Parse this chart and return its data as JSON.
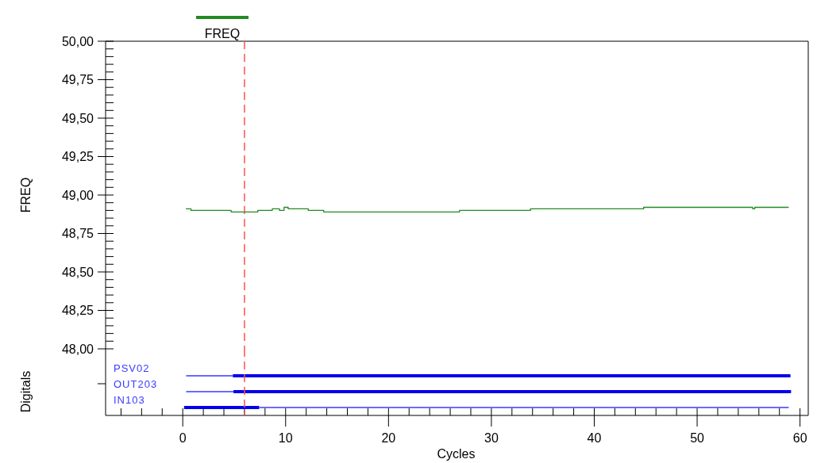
{
  "chart_data": [
    {
      "type": "line",
      "ylabel": "FREQ",
      "legend": "top",
      "tick_labels": "y",
      "xlim": [
        -7.5,
        60.8
      ],
      "ylim": [
        48,
        50
      ],
      "yticks": [
        {
          "value": 48,
          "label": "48,00"
        },
        {
          "value": 48.05,
          "label": null
        },
        {
          "value": 48.1,
          "label": null
        },
        {
          "value": 48.15,
          "label": null
        },
        {
          "value": 48.2,
          "label": null
        },
        {
          "value": 48.25,
          "label": "48,25"
        },
        {
          "value": 48.3,
          "label": null
        },
        {
          "value": 48.35,
          "label": null
        },
        {
          "value": 48.4,
          "label": null
        },
        {
          "value": 48.45,
          "label": null
        },
        {
          "value": 48.5,
          "label": "48,50"
        },
        {
          "value": 48.55,
          "label": null
        },
        {
          "value": 48.6,
          "label": null
        },
        {
          "value": 48.65,
          "label": null
        },
        {
          "value": 48.7,
          "label": null
        },
        {
          "value": 48.75,
          "label": "48,75"
        },
        {
          "value": 48.8,
          "label": null
        },
        {
          "value": 48.85,
          "label": null
        },
        {
          "value": 48.9,
          "label": null
        },
        {
          "value": 48.95,
          "label": null
        },
        {
          "value": 49,
          "label": "49,00"
        },
        {
          "value": 49.05,
          "label": null
        },
        {
          "value": 49.1,
          "label": null
        },
        {
          "value": 49.15,
          "label": null
        },
        {
          "value": 49.2,
          "label": null
        },
        {
          "value": 49.25,
          "label": "49,25"
        },
        {
          "value": 49.3,
          "label": null
        },
        {
          "value": 49.35,
          "label": null
        },
        {
          "value": 49.4,
          "label": null
        },
        {
          "value": 49.45,
          "label": null
        },
        {
          "value": 49.5,
          "label": "49,50"
        },
        {
          "value": 49.55,
          "label": null
        },
        {
          "value": 49.6,
          "label": null
        },
        {
          "value": 49.65,
          "label": null
        },
        {
          "value": 49.7,
          "label": null
        },
        {
          "value": 49.75,
          "label": "49,75"
        },
        {
          "value": 49.8,
          "label": null
        },
        {
          "value": 49.85,
          "label": null
        },
        {
          "value": 49.9,
          "label": null
        },
        {
          "value": 49.95,
          "label": null
        },
        {
          "value": 50,
          "label": "50,00"
        }
      ],
      "ref_lines": [
        {
          "axis": "x",
          "value": 6,
          "color": "#ff5050",
          "line_style": "dashed"
        }
      ],
      "series": [
        {
          "name": "FREQ",
          "color": "#228b22",
          "x": [
            0.3,
            0.8,
            4.5,
            4.7,
            7.1,
            7.3,
            8.6,
            8.7,
            9.3,
            9.4,
            9.85,
            10.25,
            12.0,
            12.2,
            13.5,
            13.7,
            26.6,
            26.9,
            33.5,
            33.8,
            44.6,
            44.8,
            55.3,
            55.4,
            55.6,
            58.9
          ],
          "values": [
            48.91,
            48.9,
            48.9,
            48.89,
            48.89,
            48.9,
            48.9,
            48.91,
            48.91,
            48.9,
            48.92,
            48.91,
            48.91,
            48.9,
            48.9,
            48.89,
            48.89,
            48.9,
            48.9,
            48.91,
            48.91,
            48.92,
            48.92,
            48.91,
            48.92,
            48.92
          ]
        }
      ]
    },
    {
      "type": "bar",
      "orientation": "horizontal",
      "ylabel": "Digitals",
      "xlabel": "Cycles",
      "categories": [
        "PSV02",
        "OUT203",
        "IN103"
      ],
      "xlim": [
        -7.5,
        60.8
      ],
      "xticks": [
        {
          "value": -6,
          "label": null
        },
        {
          "value": -4,
          "label": null
        },
        {
          "value": -2,
          "label": null
        },
        0,
        {
          "value": 2,
          "label": null
        },
        {
          "value": 4,
          "label": null
        },
        {
          "value": 6,
          "label": null
        },
        {
          "value": 8,
          "label": null
        },
        10,
        {
          "value": 12,
          "label": null
        },
        {
          "value": 14,
          "label": null
        },
        {
          "value": 16,
          "label": null
        },
        {
          "value": 18,
          "label": null
        },
        20,
        {
          "value": 22,
          "label": null
        },
        {
          "value": 24,
          "label": null
        },
        {
          "value": 26,
          "label": null
        },
        {
          "value": 28,
          "label": null
        },
        30,
        {
          "value": 32,
          "label": null
        },
        {
          "value": 34,
          "label": null
        },
        {
          "value": 36,
          "label": null
        },
        {
          "value": 38,
          "label": null
        },
        40,
        {
          "value": 42,
          "label": null
        },
        {
          "value": 44,
          "label": null
        },
        {
          "value": 46,
          "label": null
        },
        {
          "value": 48,
          "label": null
        },
        50,
        {
          "value": 52,
          "label": null
        },
        {
          "value": 54,
          "label": null
        },
        {
          "value": 56,
          "label": null
        },
        {
          "value": 58,
          "label": null
        },
        60
      ],
      "ref_lines": [
        {
          "axis": "x",
          "value": 6,
          "color": "#ff5050",
          "line_style": "dashed"
        }
      ],
      "series": [
        {
          "color": "#3a3aff",
          "base": [
            0.33,
            0.33,
            7.45
          ],
          "values": [
            4.54,
            4.6,
            51.45
          ]
        },
        {
          "color": "#0000ee",
          "base": [
            4.87,
            4.93,
            0.13
          ],
          "values": [
            54.2,
            54.2,
            7.3
          ]
        }
      ]
    }
  ]
}
